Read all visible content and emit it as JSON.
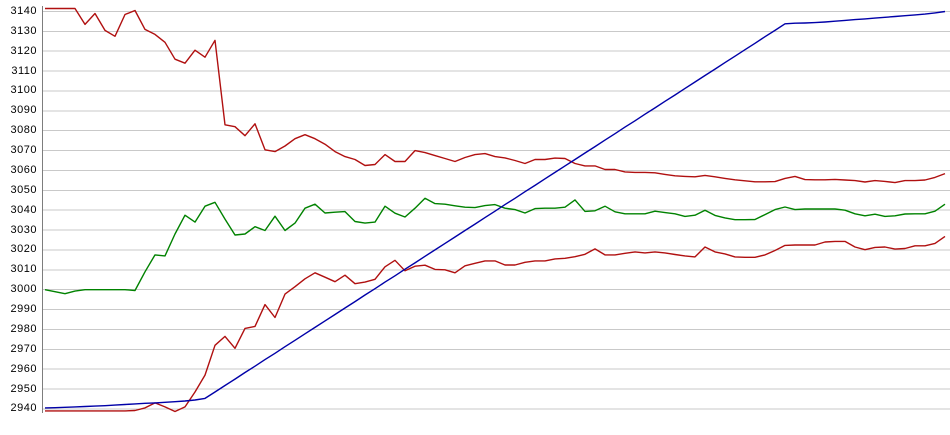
{
  "chart_data": {
    "type": "line",
    "title": "",
    "xlabel": "",
    "ylabel": "",
    "ylim": [
      2933,
      3146
    ],
    "y_ticks": [
      3140,
      3130,
      3120,
      3110,
      3100,
      3090,
      3080,
      3070,
      3060,
      3050,
      3040,
      3030,
      3020,
      3010,
      3000,
      2990,
      2980,
      2970,
      2960,
      2950,
      2940
    ],
    "x_tick_labels_visible": false,
    "grid": "horizontal",
    "legend_position": "none",
    "background_color": "#ffffff",
    "grid_color": "#c9c9c9",
    "axis_line_color": "#7d7d7d",
    "label_color": "#000000",
    "n_points": 91,
    "series": [
      {
        "name": "upper-red-line",
        "color": "#b01010",
        "values": [
          3141.5,
          3141.5,
          3141.5,
          3141.5,
          3133.5,
          3139,
          3130.5,
          3127.5,
          3138.5,
          3140.5,
          3131,
          3128.5,
          3124.5,
          3116,
          3114,
          3120.5,
          3117,
          3125.5,
          3083,
          3082,
          3077.5,
          3083.5,
          3070.4,
          3069.5,
          3072.3,
          3076,
          3078,
          3076,
          3073.2,
          3069.5,
          3067,
          3065.5,
          3062.5,
          3063,
          3068,
          3064.5,
          3064.5,
          3070,
          3069,
          3067.5,
          3066,
          3064.5,
          3066.5,
          3068,
          3068.5,
          3067,
          3066.3,
          3065,
          3063.5,
          3065.5,
          3065.5,
          3066.2,
          3066,
          3063.5,
          3062.3,
          3062.3,
          3060.5,
          3060.5,
          3059.3,
          3059,
          3059,
          3058.8,
          3058,
          3057.3,
          3057,
          3056.8,
          3057.5,
          3056.8,
          3056,
          3055.3,
          3054.8,
          3054.3,
          3054.3,
          3054.4,
          3056,
          3057,
          3055.4,
          3055.3,
          3055.3,
          3055.5,
          3055.2,
          3054.9,
          3054.2,
          3054.9,
          3054.5,
          3053.9,
          3054.9,
          3054.9,
          3055.2,
          3056.5,
          3058.4
        ]
      },
      {
        "name": "green-line",
        "color": "#008200",
        "values": [
          3000,
          2999,
          2998,
          2999.3,
          3000,
          3000,
          3000,
          3000,
          3000,
          2999.6,
          3009,
          3017.5,
          3017,
          3028,
          3037.5,
          3034,
          3042,
          3044,
          3035.5,
          3027.5,
          3028,
          3031.7,
          3029.8,
          3037,
          3029.8,
          3033.5,
          3041,
          3043,
          3038.6,
          3039,
          3039.3,
          3034.3,
          3033.5,
          3034,
          3042,
          3038.5,
          3036.6,
          3041,
          3046,
          3043.3,
          3043,
          3042.2,
          3041.5,
          3041.3,
          3042.3,
          3042.8,
          3041,
          3040.3,
          3038.6,
          3040.8,
          3041,
          3041,
          3041.5,
          3045.2,
          3039.4,
          3039.7,
          3042,
          3039.2,
          3038.2,
          3038.2,
          3038.2,
          3039.5,
          3038.8,
          3038.2,
          3036.9,
          3037.5,
          3040,
          3037.4,
          3036.1,
          3035.2,
          3035.2,
          3035.3,
          3037.8,
          3040.3,
          3041.6,
          3040.3,
          3040.6,
          3040.6,
          3040.6,
          3040.6,
          3040,
          3038.2,
          3037.2,
          3038,
          3036.9,
          3037.2,
          3038.1,
          3038.2,
          3038.2,
          3039.5,
          3043
        ]
      },
      {
        "name": "lower-red-line",
        "color": "#b01010",
        "values": [
          2939,
          2939,
          2939,
          2939,
          2939,
          2939,
          2939,
          2939,
          2939,
          2939.2,
          2940.5,
          2943,
          2941,
          2938.7,
          2941,
          2948.5,
          2957,
          2972,
          2976.5,
          2970.5,
          2980.5,
          2981.5,
          2992.5,
          2986,
          2997.8,
          3001.5,
          3005.5,
          3008.5,
          3006.3,
          3004,
          3007.3,
          3003,
          3003.8,
          3005.2,
          3011.5,
          3014.8,
          3009.5,
          3011.8,
          3012.3,
          3010.2,
          3010,
          3008.5,
          3012,
          3013.3,
          3014.5,
          3014.5,
          3012.4,
          3012.4,
          3013.8,
          3014.5,
          3014.5,
          3015.5,
          3015.8,
          3016.6,
          3017.8,
          3020.5,
          3017.5,
          3017.5,
          3018.3,
          3019,
          3018.5,
          3019,
          3018.5,
          3017.7,
          3017,
          3016.5,
          3021.5,
          3019,
          3018,
          3016.5,
          3016.3,
          3016.3,
          3017.5,
          3019.7,
          3022.3,
          3022.5,
          3022.5,
          3022.5,
          3024,
          3024.3,
          3024.3,
          3021.5,
          3020.1,
          3021.3,
          3021.5,
          3020.4,
          3020.7,
          3022.1,
          3022.1,
          3023.3,
          3026.8
        ]
      },
      {
        "name": "blue-line",
        "color": "#0000a8",
        "values": [
          2940.5,
          2940.6,
          2940.8,
          2941,
          2941.2,
          2941.4,
          2941.6,
          2941.9,
          2942.2,
          2942.5,
          2942.8,
          2943,
          2943.3,
          2943.6,
          2944,
          2944.5,
          2945.3,
          2948.5,
          2951.8,
          2955,
          2958.3,
          2961.5,
          2964.8,
          2968,
          2971.3,
          2974.5,
          2977.8,
          2981,
          2984.3,
          2987.5,
          2990.8,
          2994,
          2997.3,
          3000.5,
          3003.8,
          3007,
          3010.3,
          3013.5,
          3016.8,
          3020,
          3023.3,
          3026.5,
          3029.8,
          3033,
          3036.3,
          3039.5,
          3042.8,
          3046,
          3049.3,
          3052.5,
          3055.8,
          3059,
          3062.3,
          3065.5,
          3068.8,
          3072,
          3075.3,
          3078.5,
          3081.8,
          3085,
          3088.3,
          3091.5,
          3094.8,
          3098,
          3101.3,
          3104.5,
          3107.8,
          3111,
          3114.3,
          3117.5,
          3120.8,
          3124,
          3127.3,
          3130.5,
          3133.8,
          3134.1,
          3134.2,
          3134.4,
          3134.7,
          3135.1,
          3135.5,
          3135.9,
          3136.3,
          3136.7,
          3137.1,
          3137.5,
          3137.9,
          3138.3,
          3138.7,
          3139.3,
          3140
        ]
      }
    ]
  }
}
